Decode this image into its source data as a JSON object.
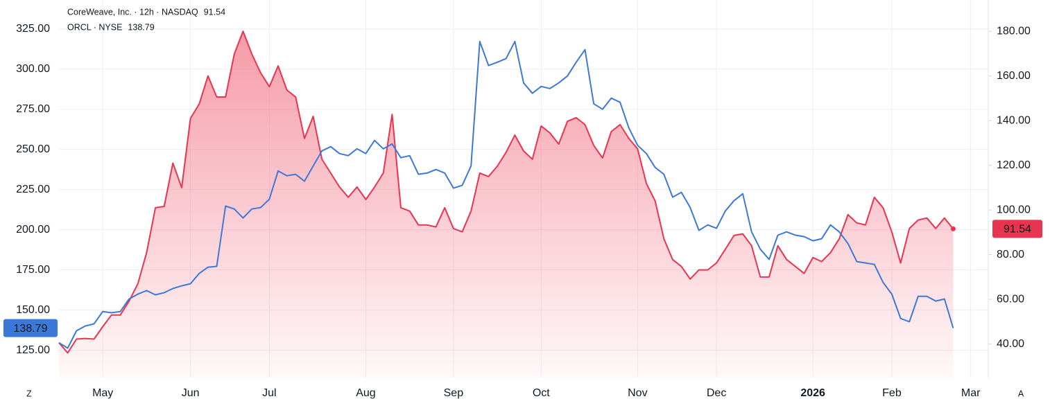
{
  "chart_data": {
    "type": "line",
    "categories": [
      null,
      null,
      null,
      null,
      null,
      "May",
      null,
      null,
      null,
      null,
      null,
      null,
      null,
      null,
      null,
      "Jun",
      null,
      null,
      null,
      null,
      null,
      null,
      null,
      null,
      "Jul",
      null,
      null,
      null,
      null,
      null,
      null,
      null,
      null,
      null,
      null,
      "Aug",
      null,
      null,
      null,
      null,
      null,
      null,
      null,
      null,
      null,
      "Sep",
      null,
      null,
      null,
      null,
      null,
      null,
      null,
      null,
      null,
      "Oct",
      null,
      null,
      null,
      null,
      null,
      null,
      null,
      null,
      null,
      null,
      "Nov",
      null,
      null,
      null,
      null,
      null,
      null,
      null,
      null,
      "Dec",
      null,
      null,
      null,
      null,
      null,
      null,
      null,
      null,
      null,
      null,
      "2026",
      null,
      null,
      null,
      null,
      null,
      null,
      null,
      null,
      "Feb",
      null,
      null,
      null,
      null,
      null,
      null,
      null,
      null,
      "Mar",
      null,
      null
    ],
    "series": [
      {
        "name": "CoreWeave, Inc. · 12h · NASDAQ",
        "color": "#e8344e",
        "axis": "y2",
        "area": true,
        "values": [
          40.6,
          36.0,
          42.2,
          42.5,
          42.2,
          47.8,
          53.0,
          53.0,
          59.2,
          67.0,
          80.9,
          101.0,
          101.6,
          121.0,
          110.0,
          141.0,
          147.5,
          160.0,
          150.6,
          150.6,
          169.8,
          180.0,
          169.8,
          161.4,
          155.2,
          164.5,
          153.7,
          150.6,
          132.0,
          141.9,
          122.7,
          116.5,
          110.3,
          105.7,
          110.3,
          104.7,
          110.3,
          116.5,
          142.8,
          101.0,
          99.5,
          93.3,
          93.3,
          92.4,
          101.0,
          91.7,
          90.2,
          99.5,
          116.5,
          115.0,
          119.6,
          125.8,
          133.5,
          126.4,
          122.7,
          137.6,
          134.5,
          129.5,
          139.7,
          141.3,
          138.2,
          128.9,
          123.3,
          135.1,
          138.2,
          132.0,
          127.4,
          111.9,
          104.1,
          87.1,
          77.8,
          74.7,
          69.1,
          73.2,
          73.2,
          76.3,
          82.4,
          88.6,
          89.3,
          84.0,
          70.0,
          70.0,
          84.0,
          77.8,
          74.7,
          71.6,
          78.7,
          76.9,
          80.9,
          87.1,
          97.9,
          94.2,
          93.3,
          105.7,
          101.0,
          90.2,
          76.3,
          91.7,
          95.5,
          96.4,
          91.7,
          96.4,
          91.54,
          null,
          null,
          null,
          null
        ]
      },
      {
        "name": "ORCL · NYSE",
        "color": "#3c78d8",
        "axis": "y",
        "values": [
          129.7,
          126.3,
          137.1,
          140.1,
          141.4,
          149.1,
          148.3,
          149.1,
          156.9,
          159.9,
          162.1,
          159.5,
          160.8,
          163.4,
          165.1,
          166.4,
          172.8,
          176.7,
          177.2,
          214.7,
          212.9,
          207.3,
          212.9,
          213.8,
          219.0,
          236.6,
          233.6,
          234.5,
          230.2,
          239.7,
          249.1,
          251.7,
          247.4,
          246.1,
          250.4,
          247.4,
          255.6,
          250.4,
          253.4,
          244.8,
          246.1,
          234.5,
          235.3,
          237.5,
          235.3,
          225.9,
          227.6,
          239.7,
          317.2,
          302.2,
          304.3,
          306.5,
          317.2,
          291.4,
          284.9,
          289.2,
          287.9,
          291.4,
          295.7,
          304.3,
          312.1,
          278.4,
          275.0,
          281.9,
          279.3,
          263.4,
          252.6,
          247.4,
          238.8,
          234.5,
          220.3,
          223.3,
          213.8,
          199.6,
          203.0,
          200.9,
          211.6,
          218.1,
          222.4,
          198.7,
          187.9,
          181.5,
          196.6,
          198.7,
          196.6,
          195.7,
          193.1,
          194.4,
          203.0,
          198.7,
          191.4,
          180.2,
          179.3,
          178.4,
          167.2,
          159.9,
          144.8,
          142.7,
          158.6,
          158.6,
          155.6,
          156.9,
          138.79,
          null,
          null,
          null,
          null
        ]
      }
    ],
    "ylim": [
      108,
      343
    ],
    "yticks": [
      {
        "value": 125,
        "label": "125.00"
      },
      {
        "value": 150,
        "label": "150.00"
      },
      {
        "value": 175,
        "label": "175.00"
      },
      {
        "value": 200,
        "label": "200.00"
      },
      {
        "value": 225,
        "label": "225.00"
      },
      {
        "value": 250,
        "label": "250.00"
      },
      {
        "value": 275,
        "label": "275.00"
      },
      {
        "value": 300,
        "label": "300.00"
      },
      {
        "value": 325,
        "label": "325.00"
      }
    ],
    "y2lim": [
      25,
      194
    ],
    "y2ticks": [
      {
        "value": 40,
        "label": "40.00"
      },
      {
        "value": 60,
        "label": "60.00"
      },
      {
        "value": 80,
        "label": "80.00"
      },
      {
        "value": 100,
        "label": "100.00"
      },
      {
        "value": 120,
        "label": "120.00"
      },
      {
        "value": 140,
        "label": "140.00"
      },
      {
        "value": 160,
        "label": "160.00"
      },
      {
        "value": 180,
        "label": "180.00"
      }
    ],
    "grid": true
  },
  "buttons": {
    "left": "Z",
    "right": "A"
  }
}
